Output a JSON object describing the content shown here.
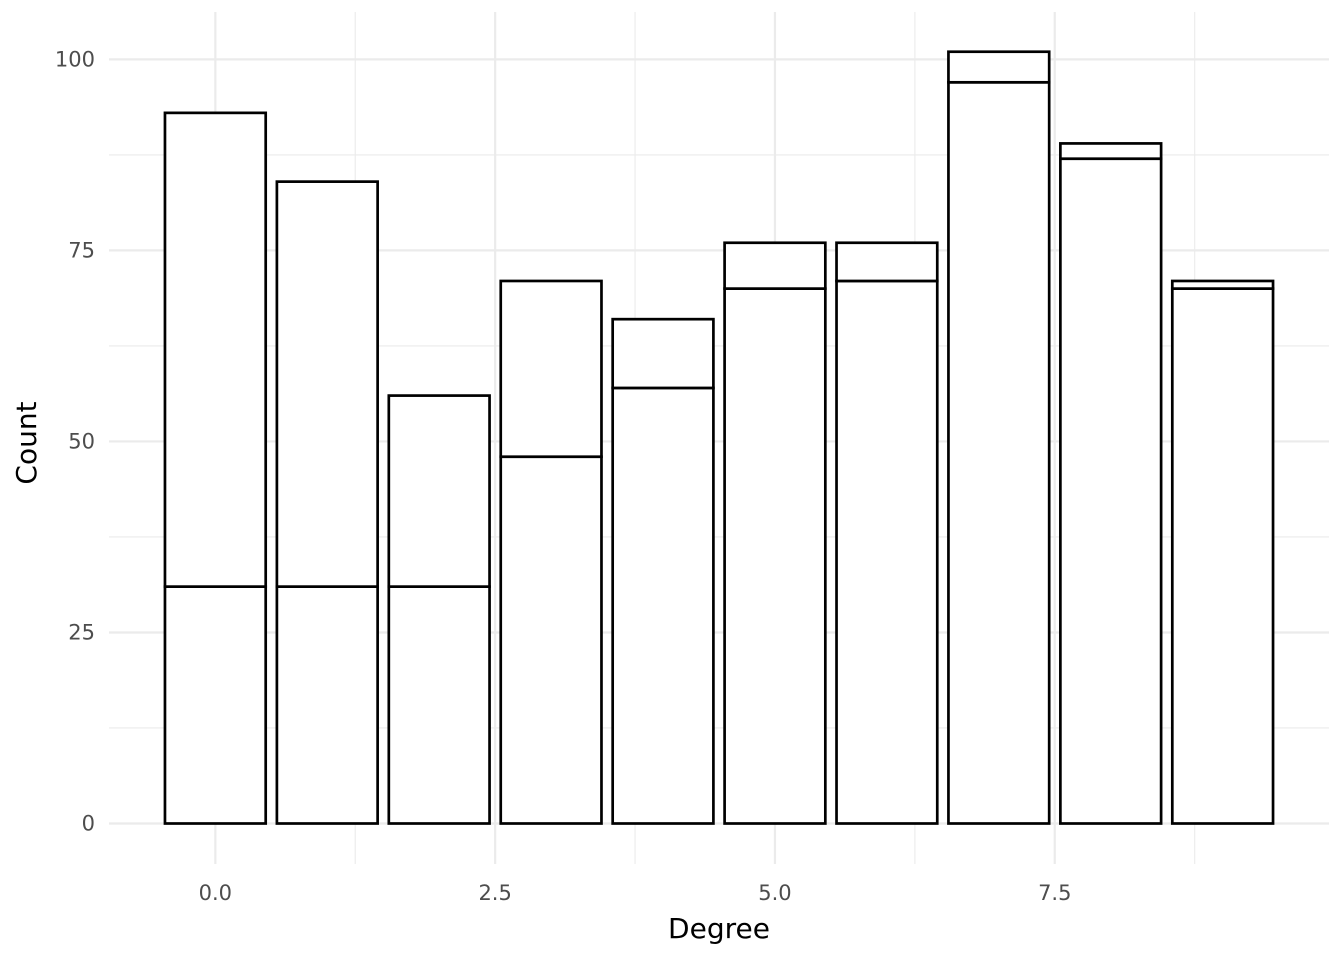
{
  "chart_data": {
    "type": "bar",
    "stacked": true,
    "title": "",
    "xlabel": "Degree",
    "ylabel": "Count",
    "x": [
      0,
      1,
      2,
      3,
      4,
      5,
      6,
      7,
      8,
      9
    ],
    "series": [
      {
        "values": [
          31,
          31,
          31,
          48,
          57,
          70,
          71,
          97,
          87,
          70
        ]
      },
      {
        "values": [
          62,
          53,
          25,
          23,
          9,
          6,
          5,
          4,
          2,
          1
        ]
      }
    ],
    "totals": [
      93,
      84,
      56,
      71,
      66,
      76,
      76,
      101,
      89,
      71
    ],
    "xlim": [
      -0.95,
      9.95
    ],
    "ylim": [
      -5.3,
      106.2
    ],
    "x_ticks": [
      0,
      2.5,
      5,
      7.5
    ],
    "x_tick_labels": [
      "0.0",
      "2.5",
      "5.0",
      "7.5"
    ],
    "y_ticks": [
      0,
      25,
      50,
      75,
      100
    ],
    "y_tick_labels": [
      "0",
      "25",
      "50",
      "75",
      "100"
    ],
    "grid": true,
    "legend": "none",
    "colors": {
      "fill": "#ffffff",
      "outline": "#000000",
      "grid": "#ebebeb",
      "tick_text": "#4d4d4d"
    }
  }
}
